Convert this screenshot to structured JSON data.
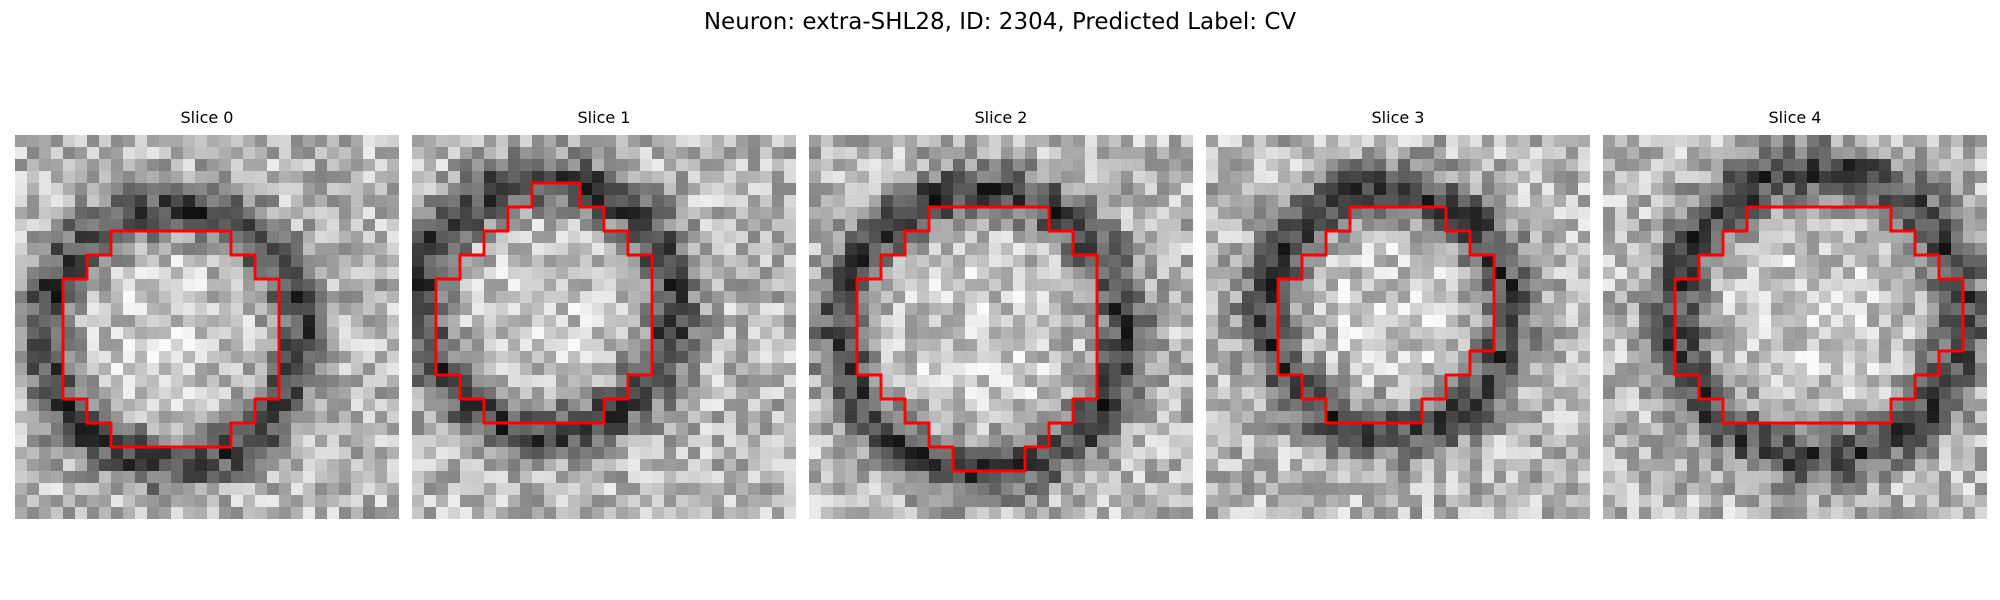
{
  "figure": {
    "title": "Neuron: extra-SHL28, ID: 2304, Predicted Label: CV"
  },
  "colors": {
    "contour": "#ff0000",
    "background": "#ffffff",
    "colormap": "gray"
  },
  "panels": [
    {
      "title": "Slice 0",
      "contour": [
        [
          9,
          4
        ],
        [
          9,
          5
        ],
        [
          10,
          5
        ],
        [
          10,
          6
        ],
        [
          11,
          6
        ],
        [
          11,
          7
        ],
        [
          11,
          8
        ],
        [
          11,
          9
        ],
        [
          11,
          10
        ],
        [
          11,
          11
        ],
        [
          10,
          11
        ],
        [
          10,
          12
        ],
        [
          9,
          12
        ],
        [
          9,
          13
        ],
        [
          8,
          13
        ],
        [
          7,
          13
        ],
        [
          6,
          13
        ],
        [
          5,
          13
        ],
        [
          4,
          13
        ],
        [
          4,
          12
        ],
        [
          3,
          12
        ],
        [
          3,
          11
        ],
        [
          2,
          11
        ],
        [
          2,
          10
        ],
        [
          2,
          9
        ],
        [
          2,
          8
        ],
        [
          2,
          7
        ],
        [
          2,
          6
        ],
        [
          3,
          6
        ],
        [
          3,
          5
        ],
        [
          4,
          5
        ],
        [
          4,
          4
        ],
        [
          5,
          4
        ],
        [
          6,
          4
        ],
        [
          7,
          4
        ],
        [
          8,
          4
        ],
        [
          9,
          4
        ]
      ]
    },
    {
      "title": "Slice 1",
      "contour": [
        [
          7,
          2
        ],
        [
          7,
          3
        ],
        [
          8,
          3
        ],
        [
          8,
          4
        ],
        [
          9,
          4
        ],
        [
          9,
          5
        ],
        [
          10,
          5
        ],
        [
          10,
          6
        ],
        [
          10,
          7
        ],
        [
          10,
          8
        ],
        [
          10,
          9
        ],
        [
          10,
          10
        ],
        [
          9,
          10
        ],
        [
          9,
          11
        ],
        [
          8,
          11
        ],
        [
          8,
          12
        ],
        [
          7,
          12
        ],
        [
          6,
          12
        ],
        [
          5,
          12
        ],
        [
          4,
          12
        ],
        [
          3,
          12
        ],
        [
          3,
          11
        ],
        [
          2,
          11
        ],
        [
          2,
          10
        ],
        [
          1,
          10
        ],
        [
          1,
          9
        ],
        [
          1,
          8
        ],
        [
          1,
          7
        ],
        [
          1,
          6
        ],
        [
          2,
          6
        ],
        [
          2,
          5
        ],
        [
          3,
          5
        ],
        [
          3,
          4
        ],
        [
          4,
          4
        ],
        [
          4,
          3
        ],
        [
          5,
          3
        ],
        [
          5,
          2
        ],
        [
          6,
          2
        ],
        [
          7,
          2
        ]
      ]
    },
    {
      "title": "Slice 2",
      "contour": [
        [
          10,
          3
        ],
        [
          10,
          4
        ],
        [
          11,
          4
        ],
        [
          11,
          5
        ],
        [
          12,
          5
        ],
        [
          12,
          6
        ],
        [
          12,
          7
        ],
        [
          12,
          8
        ],
        [
          12,
          9
        ],
        [
          12,
          10
        ],
        [
          12,
          11
        ],
        [
          11,
          11
        ],
        [
          11,
          12
        ],
        [
          10,
          12
        ],
        [
          10,
          13
        ],
        [
          9,
          13
        ],
        [
          9,
          14
        ],
        [
          8,
          14
        ],
        [
          7,
          14
        ],
        [
          6,
          14
        ],
        [
          6,
          13
        ],
        [
          5,
          13
        ],
        [
          5,
          12
        ],
        [
          4,
          12
        ],
        [
          4,
          11
        ],
        [
          3,
          11
        ],
        [
          3,
          10
        ],
        [
          2,
          10
        ],
        [
          2,
          9
        ],
        [
          2,
          8
        ],
        [
          2,
          7
        ],
        [
          2,
          6
        ],
        [
          3,
          6
        ],
        [
          3,
          5
        ],
        [
          4,
          5
        ],
        [
          4,
          4
        ],
        [
          5,
          4
        ],
        [
          5,
          3
        ],
        [
          6,
          3
        ],
        [
          7,
          3
        ],
        [
          8,
          3
        ],
        [
          9,
          3
        ],
        [
          10,
          3
        ]
      ]
    },
    {
      "title": "Slice 3",
      "contour": [
        [
          10,
          3
        ],
        [
          10,
          4
        ],
        [
          11,
          4
        ],
        [
          11,
          5
        ],
        [
          12,
          5
        ],
        [
          12,
          6
        ],
        [
          12,
          7
        ],
        [
          12,
          8
        ],
        [
          12,
          9
        ],
        [
          11,
          9
        ],
        [
          11,
          10
        ],
        [
          10,
          10
        ],
        [
          10,
          11
        ],
        [
          9,
          11
        ],
        [
          9,
          12
        ],
        [
          8,
          12
        ],
        [
          7,
          12
        ],
        [
          6,
          12
        ],
        [
          5,
          12
        ],
        [
          5,
          11
        ],
        [
          4,
          11
        ],
        [
          4,
          10
        ],
        [
          3,
          10
        ],
        [
          3,
          9
        ],
        [
          3,
          8
        ],
        [
          3,
          7
        ],
        [
          3,
          6
        ],
        [
          4,
          6
        ],
        [
          4,
          5
        ],
        [
          5,
          5
        ],
        [
          5,
          4
        ],
        [
          6,
          4
        ],
        [
          6,
          3
        ],
        [
          7,
          3
        ],
        [
          8,
          3
        ],
        [
          9,
          3
        ],
        [
          10,
          3
        ]
      ]
    },
    {
      "title": "Slice 4",
      "contour": [
        [
          12,
          3
        ],
        [
          12,
          4
        ],
        [
          13,
          4
        ],
        [
          13,
          5
        ],
        [
          14,
          5
        ],
        [
          14,
          6
        ],
        [
          15,
          6
        ],
        [
          15,
          7
        ],
        [
          15,
          8
        ],
        [
          15,
          9
        ],
        [
          14,
          9
        ],
        [
          14,
          10
        ],
        [
          13,
          10
        ],
        [
          13,
          11
        ],
        [
          12,
          11
        ],
        [
          12,
          12
        ],
        [
          11,
          12
        ],
        [
          10,
          12
        ],
        [
          9,
          12
        ],
        [
          8,
          12
        ],
        [
          7,
          12
        ],
        [
          6,
          12
        ],
        [
          5,
          12
        ],
        [
          5,
          11
        ],
        [
          4,
          11
        ],
        [
          4,
          10
        ],
        [
          3,
          10
        ],
        [
          3,
          9
        ],
        [
          3,
          8
        ],
        [
          3,
          7
        ],
        [
          3,
          6
        ],
        [
          4,
          6
        ],
        [
          4,
          5
        ],
        [
          5,
          5
        ],
        [
          5,
          4
        ],
        [
          6,
          4
        ],
        [
          6,
          3
        ],
        [
          7,
          3
        ],
        [
          8,
          3
        ],
        [
          9,
          3
        ],
        [
          10,
          3
        ],
        [
          11,
          3
        ],
        [
          12,
          3
        ]
      ]
    }
  ]
}
